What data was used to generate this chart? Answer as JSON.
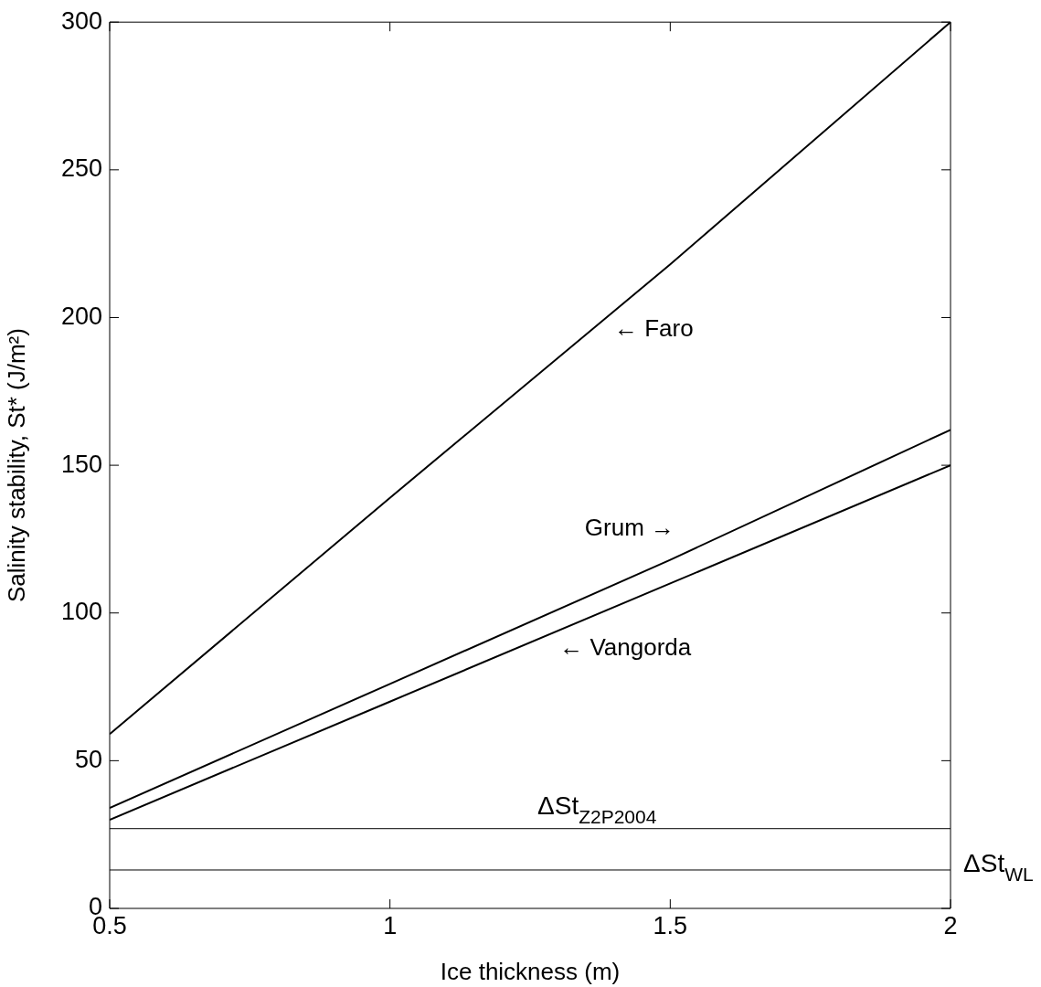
{
  "chart_data": {
    "type": "line",
    "xlabel": "Ice thickness (m)",
    "ylabel": "Salinity stability, St* (J/m²)",
    "x": [
      0.5,
      1,
      1.5,
      2
    ],
    "series": [
      {
        "color": "#000000",
        "values": [
          59,
          139,
          218,
          300
        ]
      },
      {
        "color": "#000000",
        "values": [
          34,
          76,
          118,
          162
        ]
      },
      {
        "color": "#000000",
        "values": [
          30,
          70,
          110,
          150
        ]
      }
    ],
    "xlim": [
      0.5,
      2
    ],
    "xticks": [
      0.5,
      1,
      1.5,
      2
    ],
    "ylim": [
      0,
      300
    ],
    "yticks": [
      0,
      50,
      100,
      150,
      200,
      250,
      300
    ],
    "marker": "none",
    "line_style": "solid",
    "legend": false,
    "ref_lines": [
      {
        "axis": "y",
        "value": 27,
        "label": "ΔSt$_{Z2P2004}$",
        "color": "#000000"
      },
      {
        "axis": "y",
        "value": 13,
        "label": "ΔSt$_{WL}$",
        "color": "#000000"
      }
    ],
    "annotations": [
      "← Faro",
      "Grum →",
      "← Vangorda"
    ]
  }
}
